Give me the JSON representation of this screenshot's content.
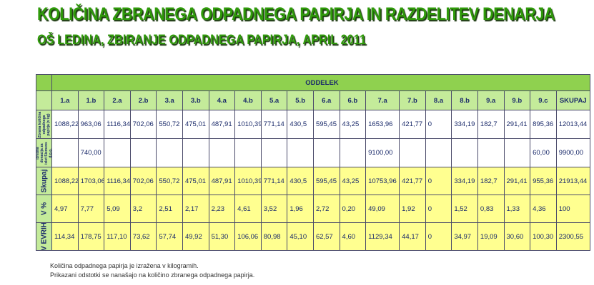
{
  "title": "KOLIČINA ZBRANEGA ODPADNEGA PAPIRJA IN RAZDELITEV DENARJA",
  "subtitle": "OŠ LEDINA, ZBIRANJE ODPADNEGA PAPIRJA, APRIL 2011",
  "table": {
    "header": "ODDELEK",
    "columns": [
      "1.a",
      "1.b",
      "2.a",
      "2.b",
      "3.a",
      "3.b",
      "4.a",
      "4.b",
      "5.a",
      "5.b",
      "6.a",
      "6.b",
      "7.a",
      "7.b",
      "8.a",
      "8.b",
      "9.a",
      "9.b",
      "9.c",
      "SKUPAJ"
    ],
    "rows": [
      {
        "label": "Zbrana količina odpadnega papirja (v kg)",
        "cells": [
          "1088,22",
          "963,06",
          "1116,34",
          "702,06",
          "550,72",
          "475,01",
          "487,91",
          "1010,39",
          "771,14",
          "430,5",
          "595,45",
          "43,25",
          "1653,96",
          "421,77",
          "0",
          "334,19",
          "182,7",
          "291,41",
          "895,36",
          "12013,44"
        ]
      },
      {
        "label": "Izredna donacija za izlet Siemens d.o.o.",
        "cells": [
          null,
          "740,00",
          null,
          null,
          null,
          null,
          null,
          null,
          null,
          null,
          null,
          null,
          "9100,00",
          null,
          null,
          null,
          null,
          null,
          "60,00",
          "9900,00"
        ]
      },
      {
        "label": "Skupaj",
        "cells": [
          "1088,22",
          "1703,06",
          "1116,34",
          "702,06",
          "550,72",
          "475,01",
          "487,91",
          "1010,39",
          "771,14",
          "430,5",
          "595,45",
          "43,25",
          "10753,96",
          "421,77",
          "0",
          "334,19",
          "182,7",
          "291,41",
          "955,36",
          "21913,44"
        ]
      },
      {
        "label": "V %",
        "cells": [
          "4,97",
          "7,77",
          "5,09",
          "3,2",
          "2,51",
          "2,17",
          "2,23",
          "4,61",
          "3,52",
          "1,96",
          "2,72",
          "0,20",
          "49,09",
          "1,92",
          "0",
          "1,52",
          "0,83",
          "1,33",
          "4,36",
          "100"
        ]
      },
      {
        "label": "V EVRIH",
        "cells": [
          "114,34",
          "178,75",
          "117,10",
          "73,62",
          "57,74",
          "49,92",
          "51,30",
          "106,06",
          "80,98",
          "45,10",
          "62,57",
          "4,60",
          "1129,34",
          "44,17",
          "0",
          "34,97",
          "19,09",
          "30,60",
          "100,30",
          "2300,55"
        ]
      }
    ]
  },
  "notes": [
    "Količina odpadnega papirja je izražena v kilogramih.",
    "Prikazani odstotki se nanašajo na količino zbranega odpadnega papirja."
  ]
}
